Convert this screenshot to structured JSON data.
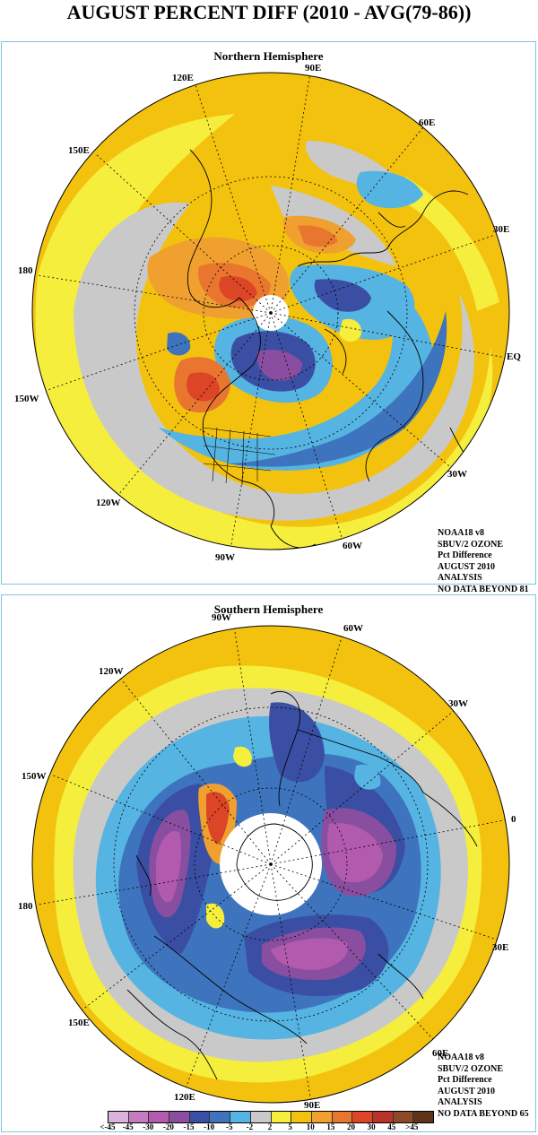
{
  "main_title": "AUGUST PERCENT DIFF (2010 - AVG(79-86))",
  "north": {
    "title": "Northern Hemisphere",
    "longitude_labels": [
      "90E",
      "60E",
      "30E",
      "EQ",
      "30W",
      "60W",
      "90W",
      "120W",
      "150W",
      "180",
      "150E",
      "120E"
    ],
    "info": [
      "NOAA18 v8",
      "SBUV/2 OZONE",
      "Pct Difference",
      "AUGUST 2010",
      "ANALYSIS",
      "NO DATA BEYOND  81"
    ]
  },
  "south": {
    "title": "Southern Hemisphere",
    "longitude_labels": [
      "90W",
      "60W",
      "30W",
      "0",
      "30E",
      "60E",
      "90E",
      "120E",
      "150E",
      "180",
      "150W",
      "120W"
    ],
    "info": [
      "NOAA18 v8",
      "SBUV/2 OZONE",
      "Pct Difference",
      "AUGUST 2010",
      "ANALYSIS",
      "NO DATA BEYOND  65"
    ]
  },
  "legend": {
    "labels": [
      "<-45",
      "-45",
      "-30",
      "-20",
      "-15",
      "-10",
      "-5",
      "-2",
      "2",
      "5",
      "10",
      "15",
      "20",
      "30",
      "45",
      ">45"
    ],
    "colors": [
      "#d9b3d9",
      "#c57ac2",
      "#b25aad",
      "#8a4ea0",
      "#3a4fa3",
      "#3e74bd",
      "#55b4e2",
      "#c9c9c9",
      "#f5ee3c",
      "#f3c20e",
      "#f0a02e",
      "#e9762f",
      "#dc4526",
      "#b8332a",
      "#8b4a24",
      "#5f3317"
    ]
  },
  "colors": {
    "yellow": "#f5ee3c",
    "gold": "#f3c20e",
    "orange": "#f0a02e",
    "orange_dark": "#e9762f",
    "red": "#dc4526",
    "gray": "#c9c9c9",
    "light_blue": "#55b4e2",
    "blue": "#3e74bd",
    "dark_blue": "#3a4fa3",
    "purple": "#8a4ea0",
    "magenta": "#b25aad",
    "border": "#7fc4e0"
  }
}
